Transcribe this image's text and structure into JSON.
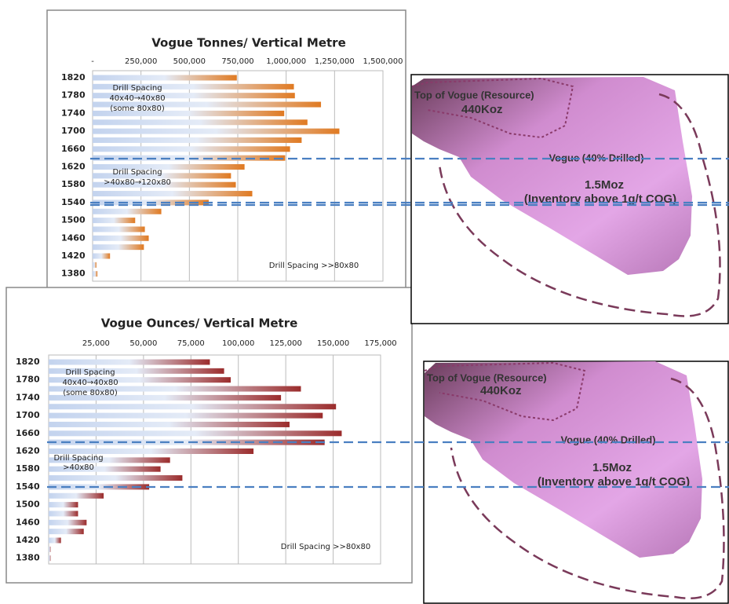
{
  "chart_data": [
    {
      "type": "bar",
      "orientation": "horizontal",
      "title": "Vogue Tonnes/ Vertical Metre",
      "categories": [
        "1820",
        null,
        "1780",
        null,
        "1740",
        null,
        "1700",
        null,
        "1660",
        null,
        "1620",
        null,
        "1580",
        null,
        "1540",
        null,
        "1500",
        null,
        "1460",
        null,
        "1420",
        null,
        "1380"
      ],
      "values": [
        745000,
        1040000,
        1045000,
        1180000,
        990000,
        1110000,
        1275000,
        1080000,
        1020000,
        995000,
        785000,
        715000,
        740000,
        825000,
        600000,
        355000,
        220000,
        270000,
        290000,
        265000,
        90000,
        20000,
        25000
      ],
      "color": "#e07a22",
      "xlim": [
        0,
        1500000
      ],
      "xticks": [
        {
          "value": 0,
          "label": "-"
        },
        {
          "value": 250000,
          "label": "250,000"
        },
        {
          "value": 500000,
          "label": "500,000"
        },
        {
          "value": 750000,
          "label": "750,000"
        },
        {
          "value": 1000000,
          "label": "1,000,000"
        },
        {
          "value": 1250000,
          "label": "1,250,000"
        },
        {
          "value": 1500000,
          "label": "1,500,000"
        }
      ],
      "grid": true,
      "annotations": [
        "Drill Spacing",
        "40x40→40x80",
        "(some 80x80)",
        "Drill Spacing",
        ">40x80→120x80",
        "Drill Spacing >>80x80"
      ]
    },
    {
      "type": "bar",
      "orientation": "horizontal",
      "title": "Vogue Ounces/ Vertical Metre",
      "categories": [
        "1820",
        null,
        "1780",
        null,
        "1740",
        null,
        "1700",
        null,
        "1660",
        null,
        "1620",
        null,
        "1580",
        null,
        "1540",
        null,
        "1500",
        null,
        "1460",
        null,
        "1420",
        null,
        "1380"
      ],
      "values": [
        85000,
        92500,
        96000,
        133000,
        122500,
        151500,
        144500,
        127000,
        154500,
        145500,
        108000,
        64000,
        59000,
        70500,
        53000,
        29000,
        15500,
        15500,
        20000,
        18500,
        6500,
        1000,
        1000
      ],
      "color": "#9b2c2c",
      "xlim": [
        0,
        175000
      ],
      "xticks": [
        {
          "value": 25000,
          "label": "25,000"
        },
        {
          "value": 50000,
          "label": "50,000"
        },
        {
          "value": 75000,
          "label": "75,000"
        },
        {
          "value": 100000,
          "label": "100,000"
        },
        {
          "value": 125000,
          "label": "125,000"
        },
        {
          "value": 150000,
          "label": "150,000"
        },
        {
          "value": 175000,
          "label": "175,000"
        }
      ],
      "grid": true,
      "annotations": [
        "Drill Spacing",
        "40x40→40x80",
        "(some 80x80)",
        "Drill Spacing",
        ">40x80",
        "Drill Spacing >>80x80"
      ]
    }
  ],
  "panels": [
    {
      "labels": [
        "Top of Vogue (Resource)",
        "440Koz",
        "Vogue (40% Drilled)",
        "1.5Moz",
        "(Inventory above 1g/t COG)"
      ]
    },
    {
      "labels": [
        "Top of Vogue (Resource)",
        "440Koz",
        "Vogue (40% Drilled)",
        "1.5Moz",
        "(Inventory above 1g/t COG)"
      ]
    }
  ]
}
